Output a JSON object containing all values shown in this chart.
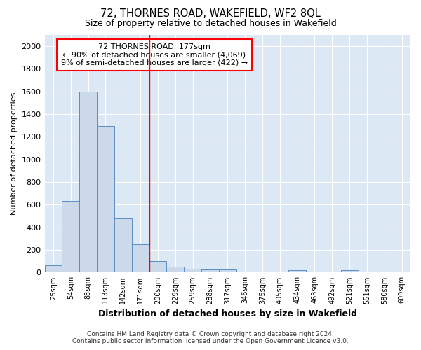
{
  "title": "72, THORNES ROAD, WAKEFIELD, WF2 8QL",
  "subtitle": "Size of property relative to detached houses in Wakefield",
  "xlabel": "Distribution of detached houses by size in Wakefield",
  "ylabel": "Number of detached properties",
  "bar_color": "#ccd9ea",
  "bar_edge_color": "#5b8ec4",
  "categories": [
    "25sqm",
    "54sqm",
    "83sqm",
    "113sqm",
    "142sqm",
    "171sqm",
    "200sqm",
    "229sqm",
    "259sqm",
    "288sqm",
    "317sqm",
    "346sqm",
    "375sqm",
    "405sqm",
    "434sqm",
    "463sqm",
    "492sqm",
    "521sqm",
    "551sqm",
    "580sqm",
    "609sqm"
  ],
  "values": [
    62,
    632,
    1600,
    1295,
    477,
    250,
    100,
    52,
    35,
    25,
    25,
    0,
    0,
    0,
    20,
    0,
    0,
    20,
    0,
    0,
    0
  ],
  "ylim": [
    0,
    2100
  ],
  "yticks": [
    0,
    200,
    400,
    600,
    800,
    1000,
    1200,
    1400,
    1600,
    1800,
    2000
  ],
  "red_line_x": 5.5,
  "legend_title": "72 THORNES ROAD: 177sqm",
  "legend_line1": "← 90% of detached houses are smaller (4,069)",
  "legend_line2": "9% of semi-detached houses are larger (422) →",
  "footer_line1": "Contains HM Land Registry data © Crown copyright and database right 2024.",
  "footer_line2": "Contains public sector information licensed under the Open Government Licence v3.0.",
  "plot_bg_color": "#dde8f5",
  "fig_bg_color": "#ffffff",
  "grid_color": "#ffffff"
}
